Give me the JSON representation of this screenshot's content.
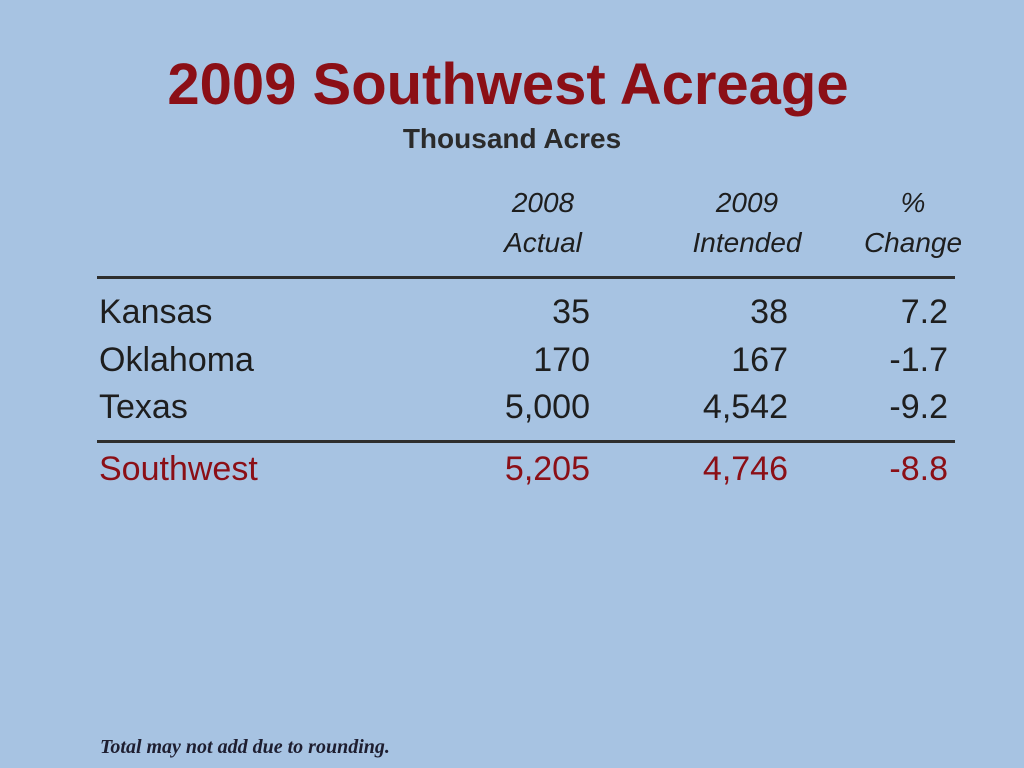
{
  "slide": {
    "title": "2009 Southwest Acreage",
    "subtitle": "Thousand Acres",
    "table": {
      "header": [
        [
          "2008",
          "Actual"
        ],
        [
          "2009",
          "Intended"
        ],
        [
          "%",
          "Change"
        ]
      ],
      "rows": [
        [
          "Kansas",
          "35",
          "38",
          "7.2"
        ],
        [
          "Oklahoma",
          "170",
          "167",
          "-1.7"
        ],
        [
          "Texas",
          "5,000",
          "4,542",
          "-9.2"
        ]
      ],
      "total": [
        "Southwest",
        "5,205",
        "4,746",
        "-8.8"
      ]
    },
    "footnote": "Total may not add due to rounding."
  }
}
